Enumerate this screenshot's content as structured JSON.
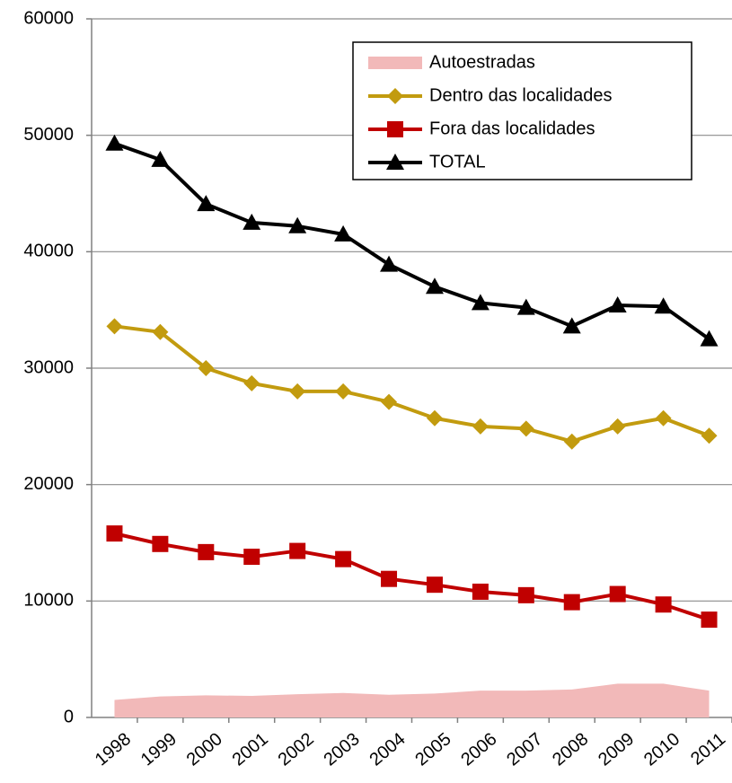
{
  "chart_data": {
    "type": "line",
    "categories": [
      "1998",
      "1999",
      "2000",
      "2001",
      "2002",
      "2003",
      "2004",
      "2005",
      "2006",
      "2007",
      "2008",
      "2009",
      "2010",
      "2011"
    ],
    "series": [
      {
        "name": "Autoestradas",
        "type": "area",
        "color": "#f2b9b9",
        "values": [
          1500,
          1800,
          1900,
          1850,
          2000,
          2100,
          1950,
          2050,
          2300,
          2300,
          2400,
          2900,
          2900,
          2300
        ]
      },
      {
        "name": "Dentro das localidades",
        "color": "#c29b0f",
        "marker": "diamond",
        "values": [
          33600,
          33100,
          30000,
          28700,
          28000,
          28000,
          27100,
          25700,
          25000,
          24800,
          23700,
          25000,
          25700,
          24200
        ]
      },
      {
        "name": "Fora das localidades",
        "color": "#c00000",
        "marker": "square",
        "values": [
          15800,
          14900,
          14200,
          13800,
          14300,
          13600,
          11900,
          11400,
          10800,
          10500,
          9900,
          10600,
          9700,
          8400
        ]
      },
      {
        "name": "TOTAL",
        "color": "#000000",
        "marker": "triangle",
        "values": [
          49300,
          47900,
          44100,
          42500,
          42200,
          41500,
          38900,
          37000,
          35600,
          35200,
          33600,
          35400,
          35300,
          32500
        ]
      }
    ],
    "ylim": [
      0,
      60000
    ],
    "yticks": [
      0,
      10000,
      20000,
      30000,
      40000,
      50000,
      60000
    ],
    "grid": true
  }
}
